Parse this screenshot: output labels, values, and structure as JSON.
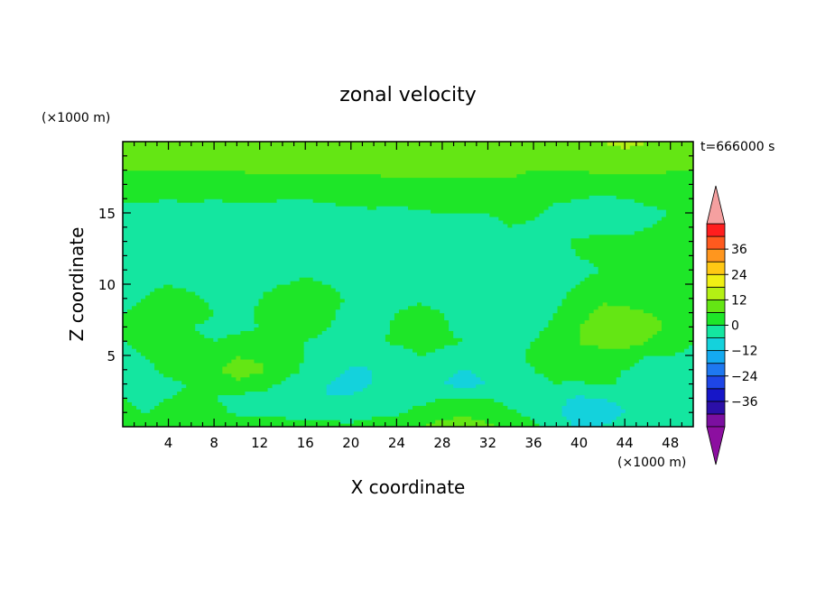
{
  "chart_data": {
    "type": "heatmap",
    "title": "zonal velocity",
    "xlabel": "X coordinate",
    "ylabel": "Z coordinate",
    "x_unit": "(×1000 m)",
    "y_unit": "(×1000 m)",
    "time_label": "t=666000 s",
    "xlim": [
      0,
      50
    ],
    "ylim": [
      0,
      20
    ],
    "x_ticks": [
      4,
      8,
      12,
      16,
      20,
      24,
      28,
      32,
      36,
      40,
      44,
      48
    ],
    "y_ticks": [
      5,
      10,
      15
    ],
    "colorbar": {
      "ticks": [
        36,
        24,
        12,
        0,
        -12,
        -24,
        -36
      ],
      "levels": [
        -42,
        -36,
        -30,
        -24,
        -18,
        -12,
        -6,
        0,
        6,
        12,
        18,
        24,
        30,
        36,
        42
      ],
      "colors": [
        "#7b0fa0",
        "#2b0fa8",
        "#1616c8",
        "#1e46e6",
        "#1e78f0",
        "#14aaf0",
        "#14d2dc",
        "#14e6a0",
        "#1ee628",
        "#64e614",
        "#b4f014",
        "#f0f014",
        "#ffc814",
        "#ff961e",
        "#ff5a1e",
        "#ff1e1e"
      ],
      "over_color": "#f5a0a0",
      "under_color": "#8c0fa0"
    },
    "nx": 26,
    "ny": 21,
    "grid_x_step": 2,
    "grid_y_step": 1,
    "values": [
      [
        2,
        1,
        2,
        3,
        4,
        6,
        5,
        4,
        3,
        2,
        1,
        2,
        3,
        6,
        8,
        9,
        7,
        5,
        2,
        -3,
        -7,
        -6,
        -4,
        -2,
        -1,
        0
      ],
      [
        1,
        0,
        1,
        2,
        2,
        -1,
        -3,
        -2,
        -4,
        -3,
        -2,
        -1,
        -1,
        2,
        4,
        5,
        4,
        1,
        -2,
        -5,
        -9,
        -8,
        -6,
        -4,
        -2,
        0
      ],
      [
        0,
        -1,
        0,
        1,
        0,
        -2,
        -3,
        -4,
        -5,
        -6,
        -5,
        -3,
        -2,
        -2,
        0,
        1,
        0,
        -2,
        -4,
        -5,
        -7,
        -6,
        -5,
        -3,
        -2,
        -1
      ],
      [
        -1,
        -2,
        -1,
        0,
        2,
        5,
        3,
        -1,
        -4,
        -6,
        -8,
        -6,
        -4,
        -3,
        -6,
        -8,
        -6,
        -4,
        -2,
        0,
        -1,
        1,
        -1,
        -2,
        -2,
        -1
      ],
      [
        -2,
        -1,
        1,
        3,
        5,
        8,
        7,
        3,
        -1,
        -3,
        -7,
        -6,
        -4,
        -2,
        -5,
        -6,
        -5,
        -3,
        0,
        2,
        3,
        1,
        0,
        -1,
        -2,
        -2
      ],
      [
        -1,
        0,
        2,
        3,
        4,
        6,
        5,
        2,
        0,
        -2,
        -3,
        -4,
        -3,
        0,
        -1,
        -3,
        -2,
        -1,
        1,
        3,
        5,
        3,
        1,
        0,
        0,
        -1
      ],
      [
        0,
        1,
        2,
        1,
        0,
        1,
        2,
        1,
        0,
        -1,
        -2,
        -1,
        1,
        2,
        1,
        0,
        -1,
        -2,
        0,
        2,
        6,
        8,
        10,
        6,
        2,
        0
      ],
      [
        1,
        2,
        1,
        0,
        -1,
        -1,
        0,
        1,
        2,
        0,
        -1,
        -2,
        1,
        3,
        1,
        -2,
        -4,
        -3,
        -1,
        1,
        6,
        9,
        11,
        9,
        5,
        1
      ],
      [
        0,
        1,
        3,
        2,
        0,
        -2,
        1,
        3,
        2,
        1,
        -2,
        -3,
        0,
        2,
        0,
        -3,
        -5,
        -3,
        -2,
        0,
        4,
        8,
        8,
        6,
        3,
        1
      ],
      [
        -1,
        0,
        2,
        1,
        -1,
        -3,
        0,
        2,
        3,
        2,
        -1,
        -3,
        -2,
        -1,
        -3,
        -5,
        -5,
        -4,
        -3,
        -1,
        2,
        5,
        4,
        3,
        2,
        1
      ],
      [
        -2,
        -1,
        0,
        -1,
        -2,
        -3,
        -1,
        0,
        1,
        0,
        -2,
        -4,
        -3,
        -3,
        -4,
        -6,
        -6,
        -5,
        -3,
        -2,
        0,
        2,
        3,
        3,
        2,
        1
      ],
      [
        -3,
        -2,
        -2,
        -3,
        -3,
        -4,
        -3,
        -2,
        -1,
        -2,
        -3,
        -4,
        -4,
        -4,
        -5,
        -5,
        -6,
        -5,
        -4,
        -3,
        -1,
        0,
        1,
        2,
        3,
        2
      ],
      [
        -4,
        -4,
        -3,
        -4,
        -4,
        -4,
        -4,
        -3,
        -3,
        -3,
        -3,
        -4,
        -4,
        -4,
        -4,
        -4,
        -4,
        -4,
        -3,
        -2,
        0,
        1,
        2,
        2,
        2,
        2
      ],
      [
        -5,
        -4,
        -4,
        -4,
        -3,
        -4,
        -4,
        -3,
        -3,
        -3,
        -3,
        -4,
        -3,
        -2,
        -3,
        -3,
        -4,
        -3,
        -2,
        -1,
        1,
        2,
        1,
        1,
        1,
        1
      ],
      [
        -4,
        -3,
        -3,
        -3,
        -3,
        -3,
        -3,
        -3,
        -3,
        -2,
        -2,
        -2,
        -2,
        -1,
        -1,
        -1,
        -1,
        0,
        -1,
        -2,
        -3,
        -2,
        -1,
        0,
        1,
        0
      ],
      [
        -2,
        -2,
        -3,
        -3,
        -2,
        -2,
        -2,
        -2,
        -2,
        -2,
        -1,
        -1,
        -2,
        -1,
        0,
        0,
        0,
        1,
        1,
        -2,
        -4,
        -5,
        -3,
        -1,
        0,
        0
      ],
      [
        1,
        1,
        0,
        1,
        0,
        1,
        1,
        0,
        0,
        1,
        1,
        2,
        2,
        3,
        3,
        3,
        2,
        2,
        2,
        1,
        0,
        -1,
        0,
        1,
        1,
        1
      ],
      [
        3,
        3,
        3,
        3,
        3,
        3,
        3,
        3,
        3,
        4,
        4,
        4,
        5,
        5,
        5,
        5,
        5,
        5,
        4,
        4,
        3,
        3,
        3,
        4,
        4,
        4
      ],
      [
        6,
        6,
        6,
        6,
        6,
        6,
        7,
        7,
        7,
        7,
        7,
        7,
        7,
        7,
        7,
        7,
        7,
        7,
        6,
        6,
        6,
        7,
        7,
        7,
        6,
        6
      ],
      [
        8,
        8,
        7,
        8,
        8,
        9,
        9,
        8,
        8,
        8,
        8,
        9,
        9,
        9,
        9,
        9,
        9,
        8,
        8,
        8,
        9,
        10,
        11,
        10,
        9,
        9
      ],
      [
        8,
        8,
        8,
        8,
        9,
        9,
        9,
        9,
        9,
        9,
        9,
        9,
        9,
        9,
        9,
        9,
        9,
        9,
        9,
        9,
        10,
        12,
        13,
        12,
        10,
        9
      ]
    ]
  }
}
